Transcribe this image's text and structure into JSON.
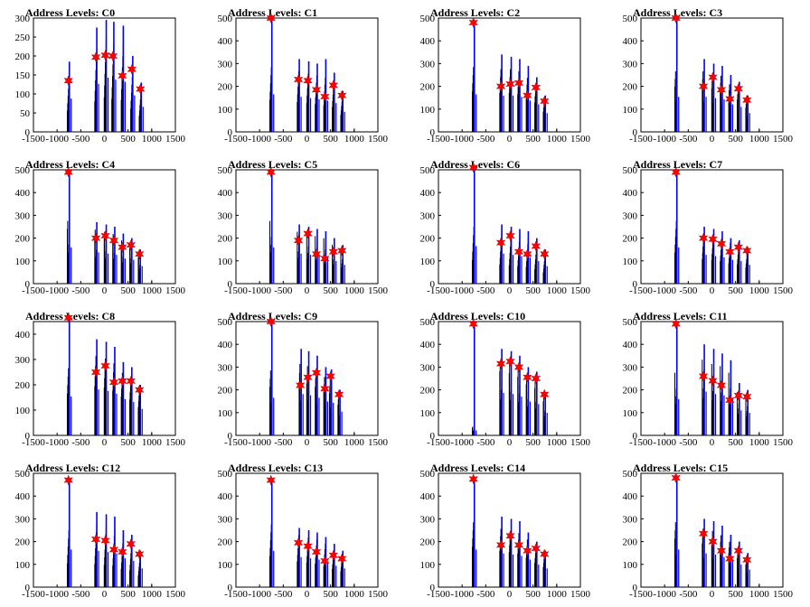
{
  "chart_data": {
    "type": "bar",
    "layout": "4x4 grid of small multiples",
    "shared_x_axis": {
      "xlim": [
        -1500,
        1500
      ],
      "ticks": [
        -1500,
        -1000,
        -500,
        0,
        500,
        1000,
        1500
      ]
    },
    "marker": "red-star",
    "bar_color": "#0000ff",
    "secondary_bar_color": "#000000",
    "star_color": "#ff0000",
    "panels": [
      {
        "title": "Address Levels: C0",
        "ylim": [
          0,
          300
        ],
        "yticks": [
          0,
          50,
          100,
          150,
          200,
          250,
          300
        ],
        "clusters": [
          {
            "x": -760,
            "peak": 185,
            "black": 160,
            "star": 135
          },
          {
            "x": -180,
            "peak": 275,
            "black": 230,
            "star": 197
          },
          {
            "x": 20,
            "peak": 295,
            "black": 260,
            "star": 202
          },
          {
            "x": 180,
            "peak": 290,
            "black": 250,
            "star": 200
          },
          {
            "x": 380,
            "peak": 280,
            "black": 240,
            "star": 148
          },
          {
            "x": 580,
            "peak": 200,
            "black": 175,
            "star": 165
          },
          {
            "x": 760,
            "peak": 130,
            "black": 120,
            "star": 113
          }
        ]
      },
      {
        "title": "Address Levels: C1",
        "ylim": [
          0,
          500
        ],
        "yticks": [
          0,
          100,
          200,
          300,
          400,
          500
        ],
        "clusters": [
          {
            "x": -760,
            "peak": 510,
            "black": 300,
            "star": 500
          },
          {
            "x": -180,
            "peak": 320,
            "black": 280,
            "star": 230
          },
          {
            "x": 20,
            "peak": 310,
            "black": 270,
            "star": 225
          },
          {
            "x": 200,
            "peak": 300,
            "black": 260,
            "star": 185
          },
          {
            "x": 380,
            "peak": 320,
            "black": 250,
            "star": 155
          },
          {
            "x": 560,
            "peak": 260,
            "black": 230,
            "star": 205
          },
          {
            "x": 740,
            "peak": 180,
            "black": 160,
            "star": 160
          }
        ]
      },
      {
        "title": "Address Levels: C2",
        "ylim": [
          0,
          500
        ],
        "yticks": [
          0,
          100,
          200,
          300,
          400,
          500
        ],
        "clusters": [
          {
            "x": -760,
            "peak": 490,
            "black": 300,
            "star": 480
          },
          {
            "x": -180,
            "peak": 340,
            "black": 290,
            "star": 200
          },
          {
            "x": 20,
            "peak": 330,
            "black": 290,
            "star": 210
          },
          {
            "x": 200,
            "peak": 320,
            "black": 280,
            "star": 215
          },
          {
            "x": 380,
            "peak": 290,
            "black": 250,
            "star": 160
          },
          {
            "x": 560,
            "peak": 240,
            "black": 220,
            "star": 195
          },
          {
            "x": 740,
            "peak": 160,
            "black": 150,
            "star": 135
          }
        ]
      },
      {
        "title": "Address Levels: C3",
        "ylim": [
          0,
          500
        ],
        "yticks": [
          0,
          100,
          200,
          300,
          400,
          500
        ],
        "clusters": [
          {
            "x": -760,
            "peak": 510,
            "black": 280,
            "star": 500
          },
          {
            "x": -180,
            "peak": 320,
            "black": 280,
            "star": 200
          },
          {
            "x": 20,
            "peak": 300,
            "black": 270,
            "star": 240
          },
          {
            "x": 200,
            "peak": 290,
            "black": 260,
            "star": 185
          },
          {
            "x": 380,
            "peak": 250,
            "black": 220,
            "star": 145
          },
          {
            "x": 560,
            "peak": 220,
            "black": 200,
            "star": 190
          },
          {
            "x": 740,
            "peak": 160,
            "black": 150,
            "star": 140
          }
        ]
      },
      {
        "title": "Address Levels: C4",
        "ylim": [
          0,
          500
        ],
        "yticks": [
          0,
          100,
          200,
          300,
          400,
          500
        ],
        "clusters": [
          {
            "x": -760,
            "peak": 500,
            "black": 290,
            "star": 490
          },
          {
            "x": -180,
            "peak": 270,
            "black": 250,
            "star": 200
          },
          {
            "x": 20,
            "peak": 260,
            "black": 240,
            "star": 210
          },
          {
            "x": 200,
            "peak": 250,
            "black": 230,
            "star": 190
          },
          {
            "x": 380,
            "peak": 220,
            "black": 200,
            "star": 160
          },
          {
            "x": 560,
            "peak": 200,
            "black": 190,
            "star": 170
          },
          {
            "x": 740,
            "peak": 150,
            "black": 140,
            "star": 130
          }
        ]
      },
      {
        "title": "Address Levels: C5",
        "ylim": [
          0,
          500
        ],
        "yticks": [
          0,
          100,
          200,
          300,
          400,
          500
        ],
        "clusters": [
          {
            "x": -760,
            "peak": 500,
            "black": 290,
            "star": 490
          },
          {
            "x": -180,
            "peak": 260,
            "black": 240,
            "star": 190
          },
          {
            "x": 20,
            "peak": 250,
            "black": 230,
            "star": 220
          },
          {
            "x": 200,
            "peak": 240,
            "black": 220,
            "star": 130
          },
          {
            "x": 380,
            "peak": 230,
            "black": 210,
            "star": 110
          },
          {
            "x": 560,
            "peak": 200,
            "black": 180,
            "star": 140
          },
          {
            "x": 740,
            "peak": 170,
            "black": 150,
            "star": 145
          }
        ]
      },
      {
        "title": "Address Levels: C6",
        "ylim": [
          0,
          500
        ],
        "yticks": [
          0,
          100,
          200,
          300,
          400,
          500
        ],
        "clusters": [
          {
            "x": -760,
            "peak": 520,
            "black": 300,
            "star": 510
          },
          {
            "x": -180,
            "peak": 260,
            "black": 240,
            "star": 180
          },
          {
            "x": 20,
            "peak": 250,
            "black": 230,
            "star": 210
          },
          {
            "x": 200,
            "peak": 240,
            "black": 220,
            "star": 140
          },
          {
            "x": 380,
            "peak": 230,
            "black": 210,
            "star": 130
          },
          {
            "x": 560,
            "peak": 200,
            "black": 180,
            "star": 165
          },
          {
            "x": 740,
            "peak": 150,
            "black": 140,
            "star": 130
          }
        ]
      },
      {
        "title": "Address Levels: C7",
        "ylim": [
          0,
          500
        ],
        "yticks": [
          0,
          100,
          200,
          300,
          400,
          500
        ],
        "clusters": [
          {
            "x": -760,
            "peak": 500,
            "black": 290,
            "star": 490
          },
          {
            "x": -180,
            "peak": 250,
            "black": 230,
            "star": 200
          },
          {
            "x": 20,
            "peak": 240,
            "black": 220,
            "star": 195
          },
          {
            "x": 200,
            "peak": 230,
            "black": 210,
            "star": 175
          },
          {
            "x": 380,
            "peak": 200,
            "black": 190,
            "star": 140
          },
          {
            "x": 560,
            "peak": 190,
            "black": 180,
            "star": 160
          },
          {
            "x": 740,
            "peak": 160,
            "black": 150,
            "star": 145
          }
        ]
      },
      {
        "title": "Address Levels: C8",
        "ylim": [
          0,
          450
        ],
        "yticks": [
          0,
          100,
          200,
          300,
          400
        ],
        "clusters": [
          {
            "x": -760,
            "peak": 470,
            "black": 280,
            "star": 465
          },
          {
            "x": -180,
            "peak": 380,
            "black": 330,
            "star": 250
          },
          {
            "x": 20,
            "peak": 370,
            "black": 320,
            "star": 275
          },
          {
            "x": 200,
            "peak": 350,
            "black": 300,
            "star": 210
          },
          {
            "x": 380,
            "peak": 290,
            "black": 260,
            "star": 215
          },
          {
            "x": 560,
            "peak": 270,
            "black": 240,
            "star": 215
          },
          {
            "x": 740,
            "peak": 200,
            "black": 190,
            "star": 180
          }
        ]
      },
      {
        "title": "Address Levels: C9",
        "ylim": [
          0,
          500
        ],
        "yticks": [
          0,
          100,
          200,
          300,
          400,
          500
        ],
        "clusters": [
          {
            "x": -760,
            "peak": 500,
            "black": 300,
            "star": 500
          },
          {
            "x": -140,
            "peak": 380,
            "black": 330,
            "star": 220
          },
          {
            "x": 20,
            "peak": 370,
            "black": 320,
            "star": 255
          },
          {
            "x": 200,
            "peak": 350,
            "black": 300,
            "star": 275
          },
          {
            "x": 380,
            "peak": 300,
            "black": 270,
            "star": 205
          },
          {
            "x": 500,
            "peak": 290,
            "black": 260,
            "star": 260
          },
          {
            "x": 680,
            "peak": 200,
            "black": 190,
            "star": 180
          }
        ]
      },
      {
        "title": "Address Levels: C10",
        "ylim": [
          0,
          500
        ],
        "yticks": [
          0,
          100,
          200,
          300,
          400,
          500
        ],
        "clusters": [
          {
            "x": -760,
            "peak": 500,
            "black": 40,
            "star": 490
          },
          {
            "x": -180,
            "peak": 380,
            "black": 340,
            "star": 315
          },
          {
            "x": 20,
            "peak": 370,
            "black": 330,
            "star": 325
          },
          {
            "x": 200,
            "peak": 350,
            "black": 310,
            "star": 300
          },
          {
            "x": 380,
            "peak": 300,
            "black": 270,
            "star": 255
          },
          {
            "x": 560,
            "peak": 280,
            "black": 250,
            "star": 250
          },
          {
            "x": 740,
            "peak": 190,
            "black": 180,
            "star": 180
          }
        ]
      },
      {
        "title": "Address Levels: C11",
        "ylim": [
          0,
          500
        ],
        "yticks": [
          0,
          100,
          200,
          300,
          400,
          500
        ],
        "clusters": [
          {
            "x": -760,
            "peak": 500,
            "black": 290,
            "star": 490
          },
          {
            "x": -180,
            "peak": 400,
            "black": 350,
            "star": 260
          },
          {
            "x": 20,
            "peak": 380,
            "black": 330,
            "star": 240
          },
          {
            "x": 200,
            "peak": 360,
            "black": 320,
            "star": 220
          },
          {
            "x": 380,
            "peak": 330,
            "black": 290,
            "star": 155
          },
          {
            "x": 560,
            "peak": 230,
            "black": 200,
            "star": 175
          },
          {
            "x": 740,
            "peak": 200,
            "black": 180,
            "star": 170
          }
        ]
      },
      {
        "title": "Address Levels: C12",
        "ylim": [
          0,
          500
        ],
        "yticks": [
          0,
          100,
          200,
          300,
          400,
          500
        ],
        "clusters": [
          {
            "x": -760,
            "peak": 480,
            "black": 300,
            "star": 470
          },
          {
            "x": -180,
            "peak": 330,
            "black": 290,
            "star": 210
          },
          {
            "x": 20,
            "peak": 320,
            "black": 280,
            "star": 205
          },
          {
            "x": 200,
            "peak": 310,
            "black": 270,
            "star": 165
          },
          {
            "x": 380,
            "peak": 250,
            "black": 230,
            "star": 155
          },
          {
            "x": 560,
            "peak": 230,
            "black": 210,
            "star": 190
          },
          {
            "x": 740,
            "peak": 160,
            "black": 150,
            "star": 145
          }
        ]
      },
      {
        "title": "Address Levels: C13",
        "ylim": [
          0,
          500
        ],
        "yticks": [
          0,
          100,
          200,
          300,
          400,
          500
        ],
        "clusters": [
          {
            "x": -760,
            "peak": 480,
            "black": 290,
            "star": 470
          },
          {
            "x": -180,
            "peak": 260,
            "black": 240,
            "star": 195
          },
          {
            "x": 20,
            "peak": 250,
            "black": 230,
            "star": 180
          },
          {
            "x": 200,
            "peak": 240,
            "black": 220,
            "star": 155
          },
          {
            "x": 380,
            "peak": 220,
            "black": 200,
            "star": 115
          },
          {
            "x": 560,
            "peak": 190,
            "black": 170,
            "star": 140
          },
          {
            "x": 740,
            "peak": 160,
            "black": 150,
            "star": 125
          }
        ]
      },
      {
        "title": "Address Levels: C14",
        "ylim": [
          0,
          500
        ],
        "yticks": [
          0,
          100,
          200,
          300,
          400,
          500
        ],
        "clusters": [
          {
            "x": -760,
            "peak": 480,
            "black": 300,
            "star": 475
          },
          {
            "x": -180,
            "peak": 310,
            "black": 270,
            "star": 185
          },
          {
            "x": 20,
            "peak": 300,
            "black": 260,
            "star": 225
          },
          {
            "x": 200,
            "peak": 290,
            "black": 250,
            "star": 185
          },
          {
            "x": 380,
            "peak": 240,
            "black": 220,
            "star": 160
          },
          {
            "x": 560,
            "peak": 200,
            "black": 180,
            "star": 170
          },
          {
            "x": 740,
            "peak": 160,
            "black": 150,
            "star": 145
          }
        ]
      },
      {
        "title": "Address Levels: C15",
        "ylim": [
          0,
          500
        ],
        "yticks": [
          0,
          100,
          200,
          300,
          400,
          500
        ],
        "clusters": [
          {
            "x": -760,
            "peak": 490,
            "black": 300,
            "star": 480
          },
          {
            "x": -180,
            "peak": 300,
            "black": 270,
            "star": 235
          },
          {
            "x": 20,
            "peak": 290,
            "black": 260,
            "star": 200
          },
          {
            "x": 200,
            "peak": 270,
            "black": 240,
            "star": 160
          },
          {
            "x": 380,
            "peak": 230,
            "black": 210,
            "star": 125
          },
          {
            "x": 560,
            "peak": 200,
            "black": 180,
            "star": 160
          },
          {
            "x": 740,
            "peak": 150,
            "black": 140,
            "star": 120
          }
        ]
      }
    ]
  }
}
